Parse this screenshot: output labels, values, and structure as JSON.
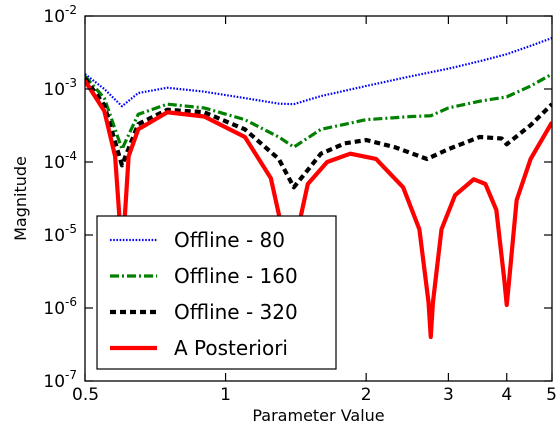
{
  "chart_data": {
    "type": "line",
    "title": "",
    "xlabel": "Parameter Value",
    "ylabel": "Magnitude",
    "xscale": "log",
    "yscale": "log",
    "xlim": [
      0.5,
      5
    ],
    "ylim": [
      1e-07,
      0.01
    ],
    "x_ticks": [
      {
        "value": 0.5,
        "label": "0.5"
      },
      {
        "value": 1,
        "label": "1"
      },
      {
        "value": 2,
        "label": "2"
      },
      {
        "value": 3,
        "label": "3"
      },
      {
        "value": 4,
        "label": "4"
      },
      {
        "value": 5,
        "label": "5"
      }
    ],
    "y_ticks": [
      {
        "value": 1e-07,
        "mantissa": "10",
        "exp": "-7"
      },
      {
        "value": 1e-06,
        "mantissa": "10",
        "exp": "-6"
      },
      {
        "value": 1e-05,
        "mantissa": "10",
        "exp": "-5"
      },
      {
        "value": 0.0001,
        "mantissa": "10",
        "exp": "-4"
      },
      {
        "value": 0.001,
        "mantissa": "10",
        "exp": "-3"
      },
      {
        "value": 0.01,
        "mantissa": "10",
        "exp": "-2"
      }
    ],
    "grid": false,
    "legend_position": "lower-left",
    "series": [
      {
        "name": "Offline - 80",
        "color": "#0000ff",
        "style": "dotted",
        "points": [
          [
            0.5,
            0.0016
          ],
          [
            0.55,
            0.001
          ],
          [
            0.6,
            0.00058
          ],
          [
            0.65,
            0.00088
          ],
          [
            0.75,
            0.00104
          ],
          [
            0.9,
            0.00092
          ],
          [
            1.1,
            0.00075
          ],
          [
            1.3,
            0.00063
          ],
          [
            1.4,
            0.00062
          ],
          [
            1.6,
            0.0008
          ],
          [
            2,
            0.0011
          ],
          [
            2.5,
            0.0015
          ],
          [
            3,
            0.0019
          ],
          [
            3.5,
            0.0024
          ],
          [
            4,
            0.003
          ],
          [
            4.5,
            0.0039
          ],
          [
            5,
            0.005
          ]
        ]
      },
      {
        "name": "Offline - 160",
        "color": "#008000",
        "style": "dashdot",
        "points": [
          [
            0.5,
            0.0015
          ],
          [
            0.55,
            0.00075
          ],
          [
            0.6,
            0.00015
          ],
          [
            0.65,
            0.00045
          ],
          [
            0.75,
            0.00062
          ],
          [
            0.9,
            0.00055
          ],
          [
            1.1,
            0.00038
          ],
          [
            1.3,
            0.00022
          ],
          [
            1.4,
            0.00016
          ],
          [
            1.6,
            0.00028
          ],
          [
            2,
            0.00038
          ],
          [
            2.5,
            0.00042
          ],
          [
            2.75,
            0.00043
          ],
          [
            3,
            0.00055
          ],
          [
            3.5,
            0.00068
          ],
          [
            4,
            0.00078
          ],
          [
            4.5,
            0.0011
          ],
          [
            5,
            0.0016
          ]
        ]
      },
      {
        "name": "Offline - 320",
        "color": "#000000",
        "style": "dashed",
        "points": [
          [
            0.5,
            0.0014
          ],
          [
            0.55,
            0.0006
          ],
          [
            0.6,
            9e-05
          ],
          [
            0.65,
            0.00033
          ],
          [
            0.75,
            0.00052
          ],
          [
            0.9,
            0.00048
          ],
          [
            1.1,
            0.00028
          ],
          [
            1.3,
            0.00011
          ],
          [
            1.4,
            4.5e-05
          ],
          [
            1.6,
            0.00013
          ],
          [
            1.8,
            0.00018
          ],
          [
            2,
            0.0002
          ],
          [
            2.3,
            0.00016
          ],
          [
            2.7,
            0.00011
          ],
          [
            3,
            0.00015
          ],
          [
            3.5,
            0.00022
          ],
          [
            3.9,
            0.00021
          ],
          [
            4,
            0.000175
          ],
          [
            4.5,
            0.00032
          ],
          [
            5,
            0.00062
          ]
        ]
      },
      {
        "name": "A Posteriori",
        "color": "#ff0000",
        "style": "solid",
        "points": [
          [
            0.5,
            0.0013
          ],
          [
            0.55,
            0.0005
          ],
          [
            0.58,
            0.00012
          ],
          [
            0.595,
            1.2e-05
          ],
          [
            0.6,
            1.2e-06
          ],
          [
            0.605,
            1e-05
          ],
          [
            0.62,
            0.00012
          ],
          [
            0.65,
            0.00028
          ],
          [
            0.75,
            0.00048
          ],
          [
            0.9,
            0.00042
          ],
          [
            1.1,
            0.00022
          ],
          [
            1.25,
            6e-05
          ],
          [
            1.33,
            1e-05
          ],
          [
            1.38,
            1.2e-06
          ],
          [
            1.42,
            1e-05
          ],
          [
            1.5,
            5e-05
          ],
          [
            1.65,
            0.0001
          ],
          [
            1.85,
            0.00013
          ],
          [
            2.1,
            0.00011
          ],
          [
            2.4,
            4.5e-05
          ],
          [
            2.6,
            1.2e-05
          ],
          [
            2.72,
            1.2e-06
          ],
          [
            2.75,
            4e-07
          ],
          [
            2.78,
            1.2e-06
          ],
          [
            2.9,
            1.2e-05
          ],
          [
            3.1,
            3.5e-05
          ],
          [
            3.4,
            5.8e-05
          ],
          [
            3.6,
            5e-05
          ],
          [
            3.8,
            2.2e-05
          ],
          [
            3.95,
            2.5e-06
          ],
          [
            4,
            1.1e-06
          ],
          [
            4.05,
            2.5e-06
          ],
          [
            4.2,
            3e-05
          ],
          [
            4.5,
            0.00011
          ],
          [
            5,
            0.00035
          ]
        ]
      }
    ]
  }
}
